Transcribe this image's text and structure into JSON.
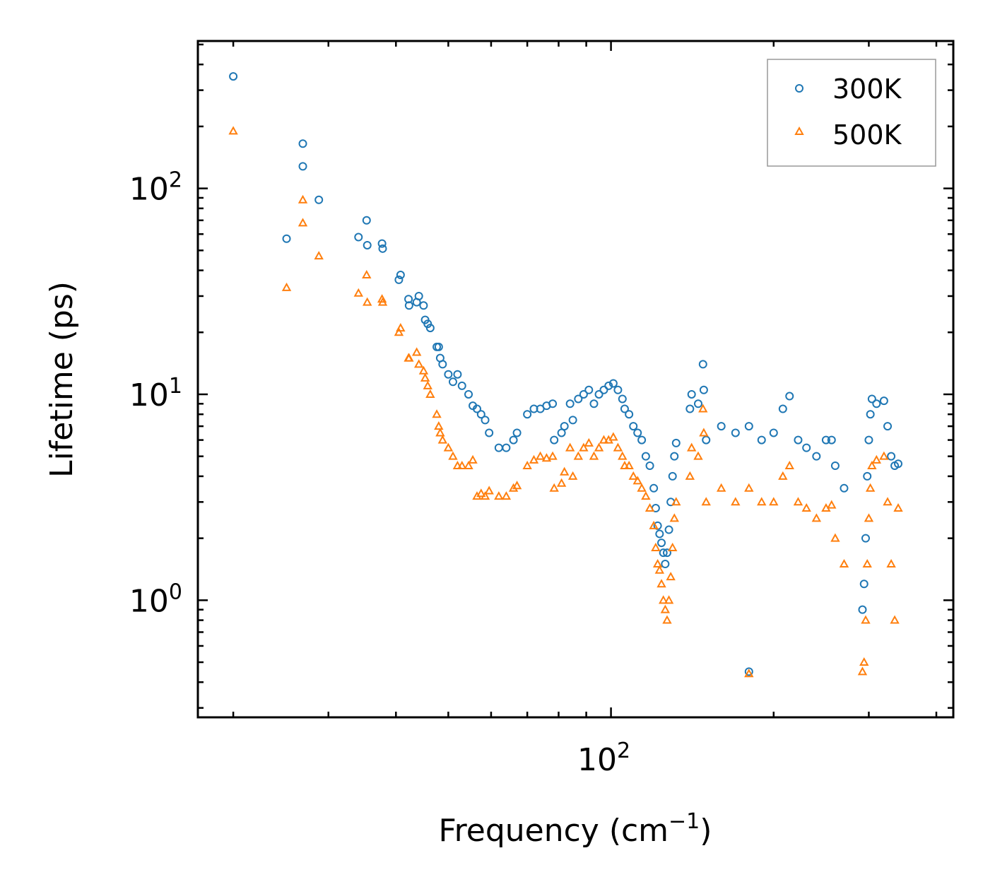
{
  "chart_data": {
    "type": "scatter",
    "title": "",
    "xlabel": "Frequency (cm",
    "xlabel_superscript": "−1",
    "xlabel_suffix": ")",
    "ylabel": "Lifetime (ps)",
    "xscale": "log",
    "yscale": "log",
    "xlim": [
      17.2,
      430
    ],
    "ylim": [
      0.27,
      520
    ],
    "x_tick_labels": [
      {
        "base": "10",
        "exp": "2",
        "value": 100
      }
    ],
    "y_tick_labels": [
      {
        "base": "10",
        "exp": "0",
        "value": 1
      },
      {
        "base": "10",
        "exp": "1",
        "value": 10
      },
      {
        "base": "10",
        "exp": "2",
        "value": 100
      }
    ],
    "legend_position": "top-right",
    "series": [
      {
        "name": "300K",
        "marker": "circle",
        "color": "#1f77b4",
        "points": [
          [
            20.0,
            350
          ],
          [
            25.1,
            57
          ],
          [
            26.9,
            165
          ],
          [
            26.9,
            128
          ],
          [
            28.8,
            88
          ],
          [
            34.1,
            58
          ],
          [
            35.3,
            70
          ],
          [
            35.4,
            53
          ],
          [
            37.7,
            54
          ],
          [
            37.8,
            51
          ],
          [
            40.5,
            36
          ],
          [
            40.8,
            38
          ],
          [
            42.2,
            29
          ],
          [
            42.3,
            27
          ],
          [
            43.7,
            28
          ],
          [
            44.1,
            30
          ],
          [
            45.0,
            27
          ],
          [
            45.3,
            23
          ],
          [
            45.8,
            22
          ],
          [
            46.3,
            21
          ],
          [
            47.6,
            17
          ],
          [
            48.0,
            17
          ],
          [
            48.3,
            15
          ],
          [
            48.8,
            14
          ],
          [
            50.0,
            12.5
          ],
          [
            51.0,
            11.5
          ],
          [
            52.0,
            12.5
          ],
          [
            53.0,
            11
          ],
          [
            54.5,
            10
          ],
          [
            55.5,
            8.8
          ],
          [
            56.5,
            8.5
          ],
          [
            57.5,
            8
          ],
          [
            58.5,
            7.5
          ],
          [
            59.5,
            6.5
          ],
          [
            62.0,
            5.5
          ],
          [
            64.0,
            5.5
          ],
          [
            66.0,
            6
          ],
          [
            67.0,
            6.5
          ],
          [
            70.0,
            8
          ],
          [
            72.0,
            8.5
          ],
          [
            74.0,
            8.5
          ],
          [
            76.0,
            8.8
          ],
          [
            78.0,
            9
          ],
          [
            78.5,
            6
          ],
          [
            81.0,
            6.5
          ],
          [
            82.0,
            7
          ],
          [
            84.0,
            9
          ],
          [
            85.0,
            7.5
          ],
          [
            87.0,
            9.5
          ],
          [
            89.0,
            10
          ],
          [
            91.0,
            10.5
          ],
          [
            93.0,
            9
          ],
          [
            95.0,
            10
          ],
          [
            97.0,
            10.5
          ],
          [
            99.0,
            11
          ],
          [
            101.0,
            11.3
          ],
          [
            103.0,
            10.5
          ],
          [
            105.0,
            9.5
          ],
          [
            106.0,
            8.5
          ],
          [
            108.0,
            8
          ],
          [
            110.0,
            7
          ],
          [
            112.0,
            6.5
          ],
          [
            114.0,
            6
          ],
          [
            116.0,
            5
          ],
          [
            118.0,
            4.5
          ],
          [
            120.0,
            3.5
          ],
          [
            121.0,
            2.8
          ],
          [
            122.0,
            2.3
          ],
          [
            123.0,
            2.1
          ],
          [
            124.0,
            1.9
          ],
          [
            125.0,
            1.7
          ],
          [
            126.0,
            1.5
          ],
          [
            127.0,
            1.7
          ],
          [
            128.0,
            2.2
          ],
          [
            129.0,
            3
          ],
          [
            130.0,
            4
          ],
          [
            131.0,
            5
          ],
          [
            132.0,
            5.8
          ],
          [
            140.0,
            8.5
          ],
          [
            141.0,
            10
          ],
          [
            145.0,
            9
          ],
          [
            148.0,
            14
          ],
          [
            148.5,
            10.5
          ],
          [
            150.0,
            6
          ],
          [
            160.0,
            7
          ],
          [
            170.0,
            6.5
          ],
          [
            180.0,
            7
          ],
          [
            190.0,
            6
          ],
          [
            200.0,
            6.5
          ],
          [
            208.0,
            8.5
          ],
          [
            214.0,
            9.8
          ],
          [
            222.0,
            6
          ],
          [
            230.0,
            5.5
          ],
          [
            240.0,
            5
          ],
          [
            250.0,
            6
          ],
          [
            256.0,
            6
          ],
          [
            260.0,
            4.5
          ],
          [
            270.0,
            3.5
          ],
          [
            180.0,
            0.45
          ],
          [
            292.0,
            0.9
          ],
          [
            294.0,
            1.2
          ],
          [
            296.0,
            2
          ],
          [
            298.0,
            4
          ],
          [
            300.0,
            6
          ],
          [
            302.0,
            8
          ],
          [
            304.0,
            9.5
          ],
          [
            310.0,
            9
          ],
          [
            320.0,
            9.3
          ],
          [
            325.0,
            7
          ],
          [
            330.0,
            5
          ],
          [
            335.0,
            4.5
          ],
          [
            340.0,
            4.6
          ]
        ]
      },
      {
        "name": "500K",
        "marker": "triangle",
        "color": "#ff7f0e",
        "points": [
          [
            20.0,
            190
          ],
          [
            25.1,
            33
          ],
          [
            26.9,
            88
          ],
          [
            26.9,
            68
          ],
          [
            28.8,
            47
          ],
          [
            34.1,
            31
          ],
          [
            35.3,
            38
          ],
          [
            35.4,
            28
          ],
          [
            37.7,
            29
          ],
          [
            37.8,
            28
          ],
          [
            40.5,
            20
          ],
          [
            40.8,
            21
          ],
          [
            42.2,
            15
          ],
          [
            42.3,
            15
          ],
          [
            43.7,
            16
          ],
          [
            44.1,
            14
          ],
          [
            45.0,
            13
          ],
          [
            45.3,
            12
          ],
          [
            45.8,
            11
          ],
          [
            46.3,
            10
          ],
          [
            47.6,
            8
          ],
          [
            48.0,
            7
          ],
          [
            48.3,
            6.5
          ],
          [
            48.8,
            6
          ],
          [
            50.0,
            5.5
          ],
          [
            51.0,
            5
          ],
          [
            52.0,
            4.5
          ],
          [
            53.0,
            4.5
          ],
          [
            54.5,
            4.5
          ],
          [
            55.5,
            4.8
          ],
          [
            56.5,
            3.2
          ],
          [
            57.5,
            3.3
          ],
          [
            58.5,
            3.2
          ],
          [
            59.5,
            3.4
          ],
          [
            62.0,
            3.2
          ],
          [
            64.0,
            3.2
          ],
          [
            66.0,
            3.5
          ],
          [
            67.0,
            3.6
          ],
          [
            70.0,
            4.5
          ],
          [
            72.0,
            4.8
          ],
          [
            74.0,
            5
          ],
          [
            76.0,
            4.9
          ],
          [
            78.0,
            5
          ],
          [
            78.5,
            3.5
          ],
          [
            81.0,
            3.7
          ],
          [
            82.0,
            4.2
          ],
          [
            84.0,
            5.5
          ],
          [
            85.0,
            4
          ],
          [
            87.0,
            5
          ],
          [
            89.0,
            5.5
          ],
          [
            91.0,
            5.8
          ],
          [
            93.0,
            5
          ],
          [
            95.0,
            5.5
          ],
          [
            97.0,
            6
          ],
          [
            99.0,
            6
          ],
          [
            101.0,
            6.2
          ],
          [
            103.0,
            5.5
          ],
          [
            105.0,
            5
          ],
          [
            106.0,
            4.5
          ],
          [
            108.0,
            4.5
          ],
          [
            110.0,
            4
          ],
          [
            112.0,
            3.8
          ],
          [
            114.0,
            3.5
          ],
          [
            116.0,
            3.2
          ],
          [
            118.0,
            2.8
          ],
          [
            120.0,
            2.3
          ],
          [
            121.0,
            1.8
          ],
          [
            122.0,
            1.5
          ],
          [
            123.0,
            1.4
          ],
          [
            124.0,
            1.2
          ],
          [
            125.0,
            1.0
          ],
          [
            126.0,
            0.9
          ],
          [
            127.0,
            0.8
          ],
          [
            128.0,
            1.0
          ],
          [
            129.0,
            1.3
          ],
          [
            130.0,
            1.8
          ],
          [
            131.0,
            2.5
          ],
          [
            132.0,
            3
          ],
          [
            140.0,
            4
          ],
          [
            141.0,
            5.5
          ],
          [
            145.0,
            5
          ],
          [
            148.0,
            8.5
          ],
          [
            148.5,
            6.5
          ],
          [
            150.0,
            3
          ],
          [
            160.0,
            3.5
          ],
          [
            170.0,
            3
          ],
          [
            180.0,
            3.5
          ],
          [
            190.0,
            3
          ],
          [
            200.0,
            3
          ],
          [
            208.0,
            4
          ],
          [
            214.0,
            4.5
          ],
          [
            222.0,
            3
          ],
          [
            230.0,
            2.8
          ],
          [
            240.0,
            2.5
          ],
          [
            250.0,
            2.8
          ],
          [
            256.0,
            2.9
          ],
          [
            260.0,
            2
          ],
          [
            270.0,
            1.5
          ],
          [
            180.0,
            0.44
          ],
          [
            292.0,
            0.45
          ],
          [
            294.0,
            0.5
          ],
          [
            296.0,
            0.8
          ],
          [
            298.0,
            1.5
          ],
          [
            300.0,
            2.5
          ],
          [
            302.0,
            3.5
          ],
          [
            304.0,
            4.5
          ],
          [
            310.0,
            4.8
          ],
          [
            320.0,
            5
          ],
          [
            325.0,
            3
          ],
          [
            330.0,
            1.5
          ],
          [
            335.0,
            0.8
          ],
          [
            340.0,
            2.8
          ]
        ]
      }
    ]
  }
}
